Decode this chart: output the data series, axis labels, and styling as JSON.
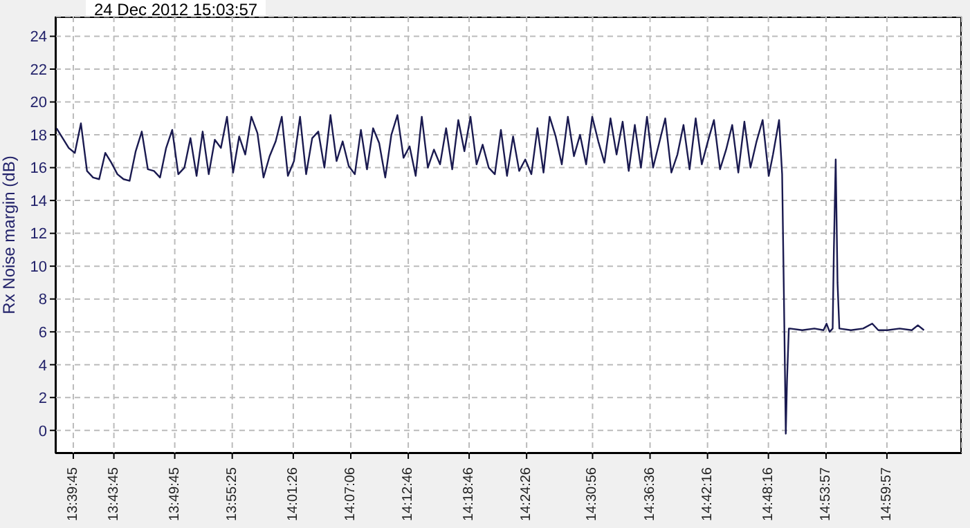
{
  "chart_data": {
    "type": "line",
    "title": "24 Dec 2012  15:03:57",
    "ylabel": "Rx Noise margin (dB)",
    "x": [
      13.635,
      13.645,
      13.655,
      13.665,
      13.675,
      13.685,
      13.695,
      13.705,
      13.715,
      13.725,
      13.735,
      13.745,
      13.755,
      13.765,
      13.775,
      13.785,
      13.795,
      13.805,
      13.815,
      13.825,
      13.835,
      13.845,
      13.855,
      13.865,
      13.875,
      13.885,
      13.895,
      13.905,
      13.915,
      13.925,
      13.935,
      13.945,
      13.955,
      13.965,
      13.975,
      13.985,
      13.995,
      14.005,
      14.015,
      14.025,
      14.035,
      14.045,
      14.055,
      14.065,
      14.075,
      14.085,
      14.095,
      14.105,
      14.115,
      14.125,
      14.135,
      14.145,
      14.155,
      14.165,
      14.175,
      14.185,
      14.195,
      14.205,
      14.215,
      14.225,
      14.235,
      14.245,
      14.255,
      14.265,
      14.275,
      14.285,
      14.295,
      14.305,
      14.315,
      14.325,
      14.335,
      14.345,
      14.355,
      14.365,
      14.375,
      14.385,
      14.395,
      14.405,
      14.415,
      14.425,
      14.435,
      14.445,
      14.455,
      14.465,
      14.475,
      14.485,
      14.495,
      14.505,
      14.515,
      14.525,
      14.535,
      14.545,
      14.555,
      14.565,
      14.575,
      14.585,
      14.595,
      14.605,
      14.615,
      14.625,
      14.635,
      14.645,
      14.655,
      14.665,
      14.675,
      14.685,
      14.695,
      14.705,
      14.715,
      14.725,
      14.735,
      14.745,
      14.755,
      14.765,
      14.775,
      14.785,
      14.795,
      14.805,
      14.812,
      14.822,
      14.827,
      14.83,
      14.833,
      14.835,
      14.838,
      14.84,
      14.86,
      14.88,
      14.895,
      14.9,
      14.905,
      14.91,
      14.912,
      14.915,
      14.918,
      14.921,
      14.94,
      14.96,
      14.975,
      14.985,
      15.0,
      15.02,
      15.04,
      15.05,
      15.06
    ],
    "series": [
      {
        "color": "#1a1a50",
        "values": [
          18.4,
          17.8,
          17.2,
          16.9,
          18.7,
          15.8,
          15.4,
          15.3,
          16.9,
          16.3,
          15.6,
          15.3,
          15.2,
          17.0,
          18.2,
          15.9,
          15.8,
          15.4,
          17.2,
          18.3,
          15.6,
          16.0,
          17.8,
          15.5,
          18.2,
          15.6,
          17.7,
          17.2,
          19.1,
          15.7,
          17.9,
          16.8,
          19.1,
          18.1,
          15.4,
          16.7,
          17.6,
          19.1,
          15.5,
          16.4,
          19.1,
          15.6,
          17.8,
          18.2,
          16.0,
          19.2,
          16.4,
          17.6,
          16.1,
          15.6,
          18.3,
          15.9,
          18.4,
          17.5,
          15.4,
          18.0,
          19.2,
          16.6,
          17.3,
          15.5,
          19.1,
          16.0,
          17.1,
          16.2,
          18.4,
          15.9,
          18.9,
          17.0,
          19.1,
          16.2,
          17.4,
          16.0,
          15.6,
          18.3,
          15.5,
          17.9,
          15.8,
          16.5,
          15.6,
          18.4,
          15.7,
          19.1,
          17.9,
          16.2,
          19.1,
          16.7,
          18.0,
          16.2,
          19.1,
          17.6,
          16.3,
          19.0,
          16.8,
          18.8,
          15.8,
          18.6,
          16.0,
          19.1,
          16.0,
          17.5,
          19.0,
          15.7,
          16.8,
          18.6,
          15.9,
          19.0,
          16.2,
          17.6,
          18.9,
          15.9,
          17.1,
          18.6,
          15.7,
          18.8,
          16.0,
          17.6,
          18.9,
          15.5,
          16.8,
          18.9,
          15.6,
          8.0,
          -0.2,
          3.0,
          6.2,
          6.2,
          6.1,
          6.2,
          6.1,
          6.5,
          6.0,
          6.2,
          11.0,
          16.5,
          9.0,
          6.2,
          6.1,
          6.2,
          6.5,
          6.1,
          6.1,
          6.2,
          6.1,
          6.4,
          6.1
        ]
      }
    ],
    "xlim": [
      13.633,
      15.122
    ],
    "xticks": [
      {
        "value": 13.6625,
        "label": "13:39:45"
      },
      {
        "value": 13.72917,
        "label": "13:43:45"
      },
      {
        "value": 13.82917,
        "label": "13:49:45"
      },
      {
        "value": 13.92361,
        "label": "13:55:25"
      },
      {
        "value": 14.02389,
        "label": "14:01:26"
      },
      {
        "value": 14.11833,
        "label": "14:07:06"
      },
      {
        "value": 14.21278,
        "label": "14:12:46"
      },
      {
        "value": 14.31278,
        "label": "14:18:46"
      },
      {
        "value": 14.40722,
        "label": "14:24:26"
      },
      {
        "value": 14.51556,
        "label": "14:30:56"
      },
      {
        "value": 14.61,
        "label": "14:36:36"
      },
      {
        "value": 14.70444,
        "label": "14:42:16"
      },
      {
        "value": 14.80444,
        "label": "14:48:16"
      },
      {
        "value": 14.89917,
        "label": "14:53:57"
      },
      {
        "value": 14.99917,
        "label": "14:59:57"
      }
    ],
    "ylim": [
      -1.4,
      25.2
    ],
    "yticks": [
      0,
      2,
      4,
      6,
      8,
      10,
      12,
      14,
      16,
      18,
      20,
      22,
      24
    ],
    "grid": true,
    "marker": "none",
    "line_style": "solid",
    "legend": false
  }
}
